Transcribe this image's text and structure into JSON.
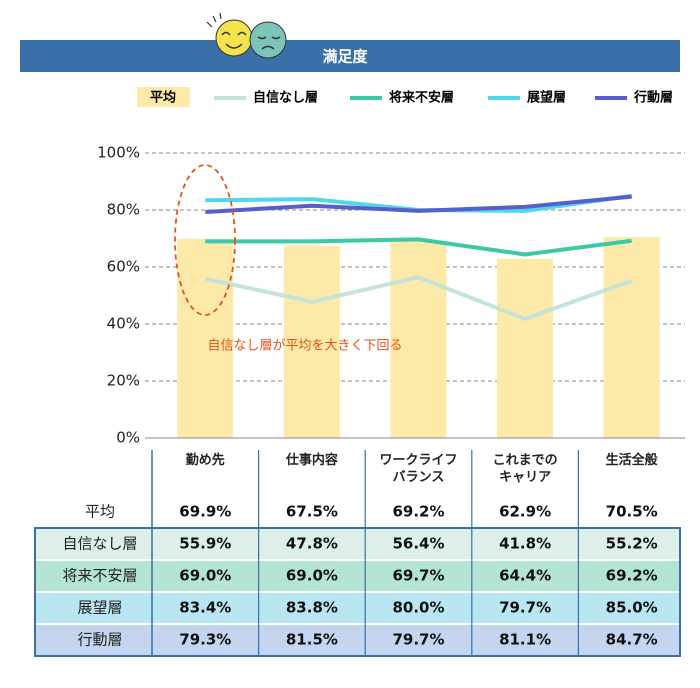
{
  "chart_data": {
    "type": "bar",
    "title": "満足度",
    "annotation": "自信なし層が平均を大きく下回る",
    "categories": [
      "勤め先",
      "仕事内容",
      "ワークライフ\nバランス",
      "これまでの\nキャリア",
      "生活全般"
    ],
    "series": [
      {
        "name": "平均",
        "type": "bar",
        "color": "#fde9a8",
        "values": [
          69.9,
          67.5,
          69.2,
          62.9,
          70.5
        ],
        "value_labels": [
          "69.9%",
          "67.5%",
          "69.2%",
          "62.9%",
          "70.5%"
        ]
      },
      {
        "name": "自信なし層",
        "type": "line",
        "color": "#c5e3d6",
        "row_color": "#dcefe8",
        "values": [
          55.9,
          47.8,
          56.4,
          41.8,
          55.2
        ],
        "value_labels": [
          "55.9%",
          "47.8%",
          "56.4%",
          "41.8%",
          "55.2%"
        ]
      },
      {
        "name": "将来不安層",
        "type": "line",
        "color": "#3dc9a5",
        "row_color": "#b4e5d4",
        "values": [
          69.0,
          69.0,
          69.7,
          64.4,
          69.2
        ],
        "value_labels": [
          "69.0%",
          "69.0%",
          "69.7%",
          "64.4%",
          "69.2%"
        ]
      },
      {
        "name": "展望層",
        "type": "line",
        "color": "#4fd7ea",
        "row_color": "#b8e6f3",
        "values": [
          83.4,
          83.8,
          80.0,
          79.7,
          85.0
        ],
        "value_labels": [
          "83.4%",
          "83.8%",
          "80.0%",
          "79.7%",
          "85.0%"
        ]
      },
      {
        "name": "行動層",
        "type": "line",
        "color": "#5660cc",
        "row_color": "#c3d5ef",
        "values": [
          79.3,
          81.5,
          79.7,
          81.1,
          84.7
        ],
        "value_labels": [
          "79.3%",
          "81.5%",
          "79.7%",
          "81.1%",
          "84.7%"
        ]
      }
    ],
    "ylim": [
      0,
      100
    ],
    "yticks": [
      {
        "value": 0,
        "label": "0%"
      },
      {
        "value": 20,
        "label": "20%"
      },
      {
        "value": 40,
        "label": "40%"
      },
      {
        "value": 60,
        "label": "60%"
      },
      {
        "value": 80,
        "label": "80%"
      },
      {
        "value": 100,
        "label": "100%"
      }
    ],
    "grid": true
  }
}
